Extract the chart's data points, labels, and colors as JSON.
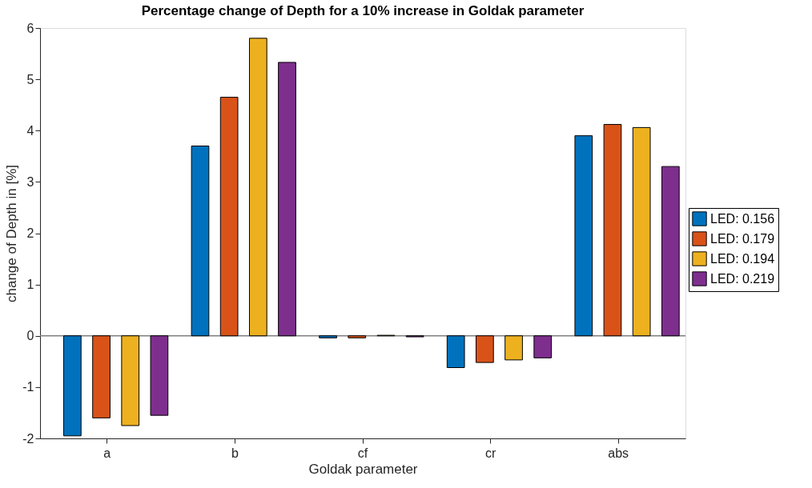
{
  "chart_data": {
    "type": "bar",
    "title": "Percentage change of Depth for a 10% increase in Goldak parameter",
    "xlabel": "Goldak parameter",
    "ylabel": "change of Depth in [%]",
    "categories": [
      "a",
      "b",
      "cf",
      "cr",
      "abs"
    ],
    "series": [
      {
        "name": "LED: 0.156",
        "color": "#0072bd",
        "values": [
          -1.95,
          3.7,
          -0.04,
          -0.62,
          3.9
        ]
      },
      {
        "name": "LED: 0.179",
        "color": "#d95319",
        "values": [
          -1.6,
          4.65,
          -0.04,
          -0.52,
          4.12
        ]
      },
      {
        "name": "LED: 0.194",
        "color": "#edb120",
        "values": [
          -1.75,
          5.8,
          0.01,
          -0.47,
          4.06
        ]
      },
      {
        "name": "LED: 0.219",
        "color": "#7e2f8e",
        "values": [
          -1.55,
          5.33,
          -0.02,
          -0.43,
          3.3
        ]
      }
    ],
    "ylim": [
      -2,
      6
    ],
    "yticks": [
      -2,
      -1,
      0,
      1,
      2,
      3,
      4,
      5,
      6
    ],
    "grid": false,
    "legend": "right",
    "ref_lines": [
      {
        "axis": "y",
        "value": 0,
        "color": "#808080"
      }
    ]
  }
}
